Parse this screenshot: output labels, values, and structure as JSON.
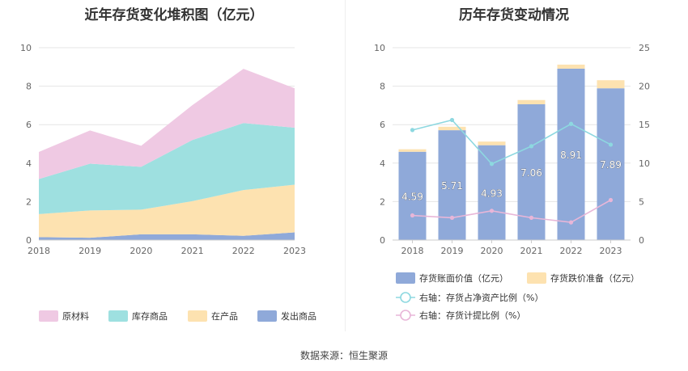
{
  "source_label": "数据来源：恒生聚源",
  "chart_data": [
    {
      "type": "area",
      "stacked": true,
      "title": "近年存货变化堆积图（亿元）",
      "categories": [
        "2018",
        "2019",
        "2020",
        "2021",
        "2022",
        "2023"
      ],
      "ylim": [
        0,
        10
      ],
      "yticks": [
        "0",
        "2",
        "4",
        "6",
        "8",
        "10"
      ],
      "grid": true,
      "legend_position": "bottom",
      "series": [
        {
          "name": "发出商品",
          "color": "#8fa9d9",
          "values": [
            0.15,
            0.12,
            0.3,
            0.3,
            0.22,
            0.4
          ]
        },
        {
          "name": "在产品",
          "color": "#fde2b0",
          "values": [
            1.2,
            1.42,
            1.28,
            1.72,
            2.38,
            2.48
          ]
        },
        {
          "name": "库存商品",
          "color": "#9ee0e0",
          "values": [
            1.82,
            2.43,
            2.23,
            3.18,
            3.48,
            2.96
          ]
        },
        {
          "name": "原材料",
          "color": "#efc9e3",
          "values": [
            1.41,
            1.73,
            1.09,
            1.81,
            2.82,
            2.05
          ]
        }
      ]
    },
    {
      "type": "bar",
      "stacked": true,
      "title": "历年存货变动情况",
      "categories": [
        "2018",
        "2019",
        "2020",
        "2021",
        "2022",
        "2023"
      ],
      "ylim": [
        0,
        10
      ],
      "yticks": [
        "0",
        "2",
        "4",
        "6",
        "8",
        "10"
      ],
      "y2lim": [
        0,
        25
      ],
      "y2ticks": [
        "0",
        "5",
        "10",
        "15",
        "20",
        "25"
      ],
      "grid": true,
      "legend_position": "bottom",
      "bars": [
        {
          "name": "存货账面价值（亿元）",
          "color": "#8fa9d9",
          "values": [
            4.59,
            5.71,
            4.93,
            7.06,
            8.91,
            7.89
          ],
          "labels": [
            "4.59",
            "5.71",
            "4.93",
            "7.06",
            "8.91",
            "7.89"
          ]
        },
        {
          "name": "存货跌价准备（亿元）",
          "color": "#fde2b0",
          "values": [
            0.13,
            0.18,
            0.19,
            0.22,
            0.21,
            0.42
          ]
        }
      ],
      "lines": [
        {
          "name": "右轴：存货占净资产比例（%）",
          "color": "#8dd8e0",
          "axis": "right",
          "values": [
            14.3,
            15.6,
            9.9,
            12.2,
            15.1,
            12.4
          ]
        },
        {
          "name": "右轴：存货计提比例（%）",
          "color": "#e8b6d8",
          "axis": "right",
          "values": [
            3.2,
            2.9,
            3.8,
            2.9,
            2.3,
            5.2
          ]
        }
      ]
    }
  ]
}
